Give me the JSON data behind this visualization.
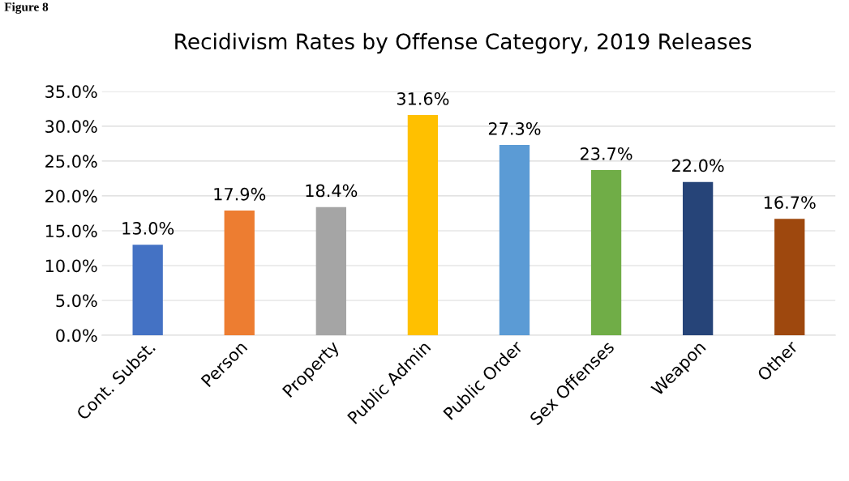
{
  "chart_data": {
    "type": "bar",
    "title": "Recidivism Rates by Offense Category, 2019 Releases",
    "annotations": [
      "Figure 8"
    ],
    "categories": [
      "Cont. Subst.",
      "Person",
      "Property",
      "Public Admin",
      "Public Order",
      "Sex Offenses",
      "Weapon",
      "Other"
    ],
    "values": [
      13.0,
      17.9,
      18.4,
      31.6,
      27.3,
      23.7,
      22.0,
      16.7
    ],
    "colors": [
      "#4472c4",
      "#ed7d31",
      "#a5a5a5",
      "#ffc000",
      "#5b9bd5",
      "#70ad47",
      "#264478",
      "#9e480e"
    ],
    "value_labels": [
      "13.0%",
      "17.9%",
      "18.4%",
      "31.6%",
      "27.3%",
      "23.7%",
      "22.0%",
      "16.7%"
    ],
    "ylim": [
      0,
      35
    ],
    "yticks": [
      {
        "value": 0,
        "label": "0.0%"
      },
      {
        "value": 5,
        "label": "5.0%"
      },
      {
        "value": 10,
        "label": "10.0%"
      },
      {
        "value": 15,
        "label": "15.0%"
      },
      {
        "value": 20,
        "label": "20.0%"
      },
      {
        "value": 25,
        "label": "25.0%"
      },
      {
        "value": 30,
        "label": "30.0%"
      },
      {
        "value": 35,
        "label": "35.0%"
      }
    ],
    "grid": "y",
    "legend": false
  }
}
